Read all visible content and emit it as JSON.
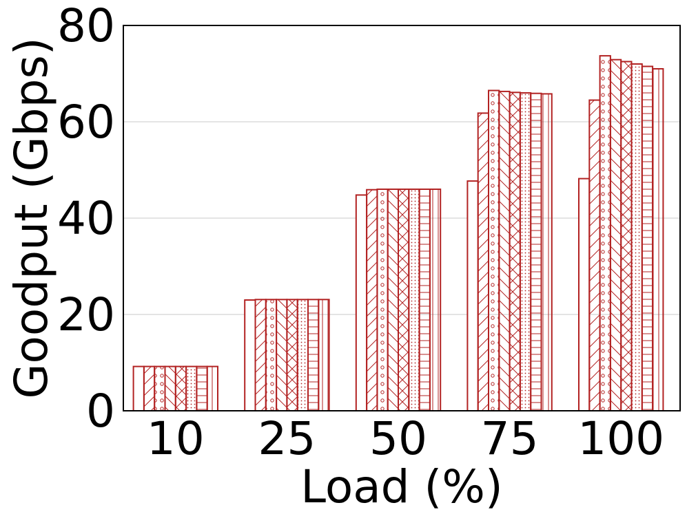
{
  "chart_data": {
    "type": "bar",
    "title": "",
    "xlabel": "Load (%)",
    "ylabel": "Goodput (Gbps)",
    "categories": [
      "10",
      "25",
      "50",
      "75",
      "100"
    ],
    "ylim": [
      0,
      80
    ],
    "yticks": [
      "0",
      "20",
      "40",
      "60",
      "80"
    ],
    "grid": "horizontal",
    "legend": "none",
    "bar_color": "#b22222",
    "series": [
      {
        "pattern": "none",
        "values": [
          9.2,
          23.0,
          44.8,
          47.7,
          48.2
        ]
      },
      {
        "pattern": "diagonal",
        "values": [
          9.2,
          23.1,
          45.9,
          61.8,
          64.5
        ]
      },
      {
        "pattern": "circles",
        "values": [
          9.2,
          23.1,
          46.0,
          66.5,
          73.7
        ]
      },
      {
        "pattern": "back-diagonal",
        "values": [
          9.2,
          23.1,
          46.0,
          66.3,
          72.9
        ]
      },
      {
        "pattern": "crosshatch",
        "values": [
          9.2,
          23.1,
          46.0,
          66.1,
          72.5
        ]
      },
      {
        "pattern": "dots",
        "values": [
          9.2,
          23.1,
          46.0,
          66.0,
          72.0
        ]
      },
      {
        "pattern": "horizontal",
        "values": [
          9.2,
          23.1,
          46.0,
          65.9,
          71.5
        ]
      },
      {
        "pattern": "vertical",
        "values": [
          9.2,
          23.1,
          46.0,
          65.8,
          71.0
        ]
      }
    ]
  }
}
